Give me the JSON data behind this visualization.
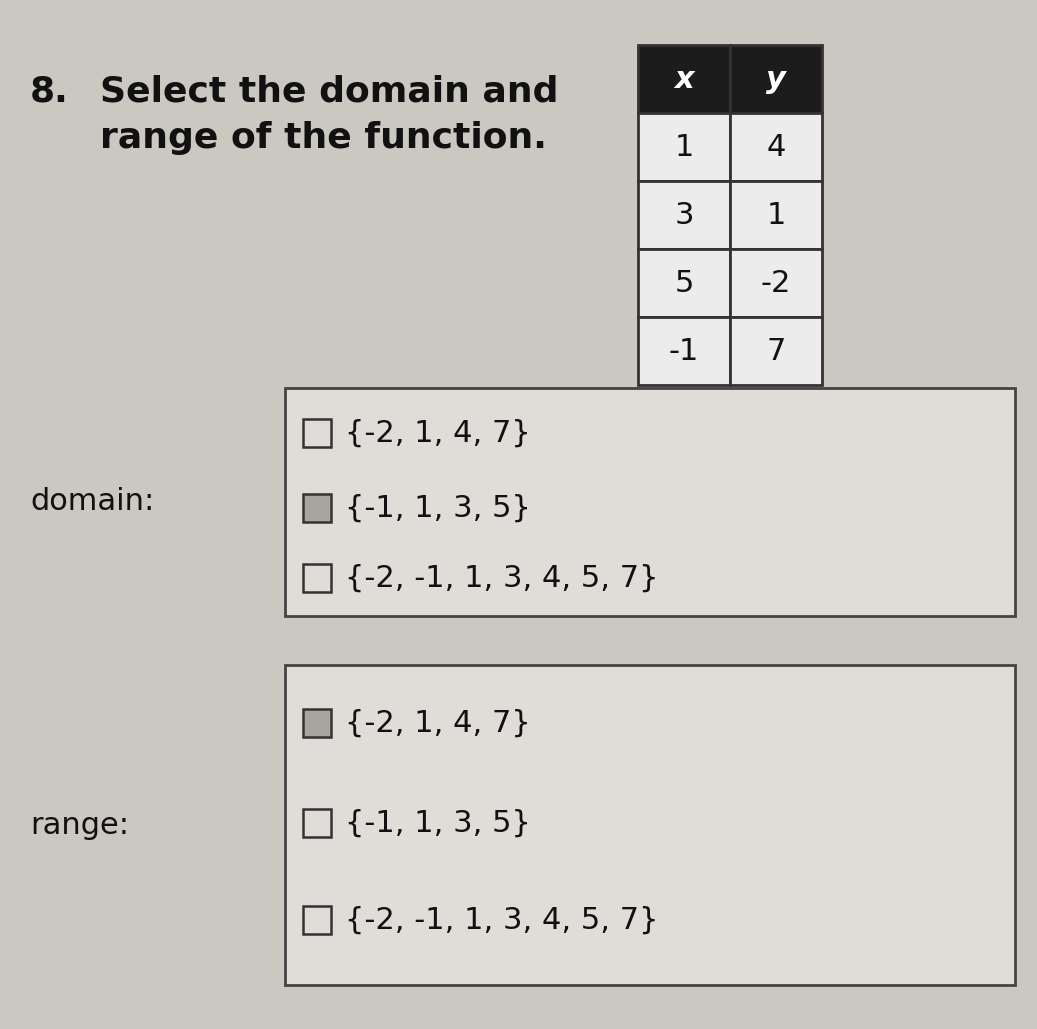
{
  "title_number": "8.",
  "title_text": "Select the domain and\nrange of the function.",
  "table": {
    "header": [
      "x",
      "y"
    ],
    "rows": [
      [
        "1",
        "4"
      ],
      [
        "3",
        "1"
      ],
      [
        "5",
        "-2"
      ],
      [
        "-1",
        "7"
      ]
    ],
    "header_bg": "#1c1c1c",
    "header_fg": "#ffffff",
    "cell_bg": "#ececec",
    "border_color": "#333333"
  },
  "domain_label": "domain:",
  "domain_options": [
    "{-2, 1, 4, 7}",
    "{-1, 1, 3, 5}",
    "{-2, -1, 1, 3, 4, 5, 7}"
  ],
  "domain_checked": [
    false,
    true,
    false
  ],
  "range_label": "range:",
  "range_options": [
    "{-2, 1, 4, 7}",
    "{-1, 1, 3, 5}",
    "{-2, -1, 1, 3, 4, 5, 7}"
  ],
  "range_checked": [
    true,
    false,
    false
  ],
  "bg_color": "#cbc8c2",
  "box_bg": "#e0ddd8",
  "text_color": "#111111",
  "font_size_title": 26,
  "font_size_number": 26,
  "font_size_table": 22,
  "font_size_options": 22,
  "font_size_label": 22
}
